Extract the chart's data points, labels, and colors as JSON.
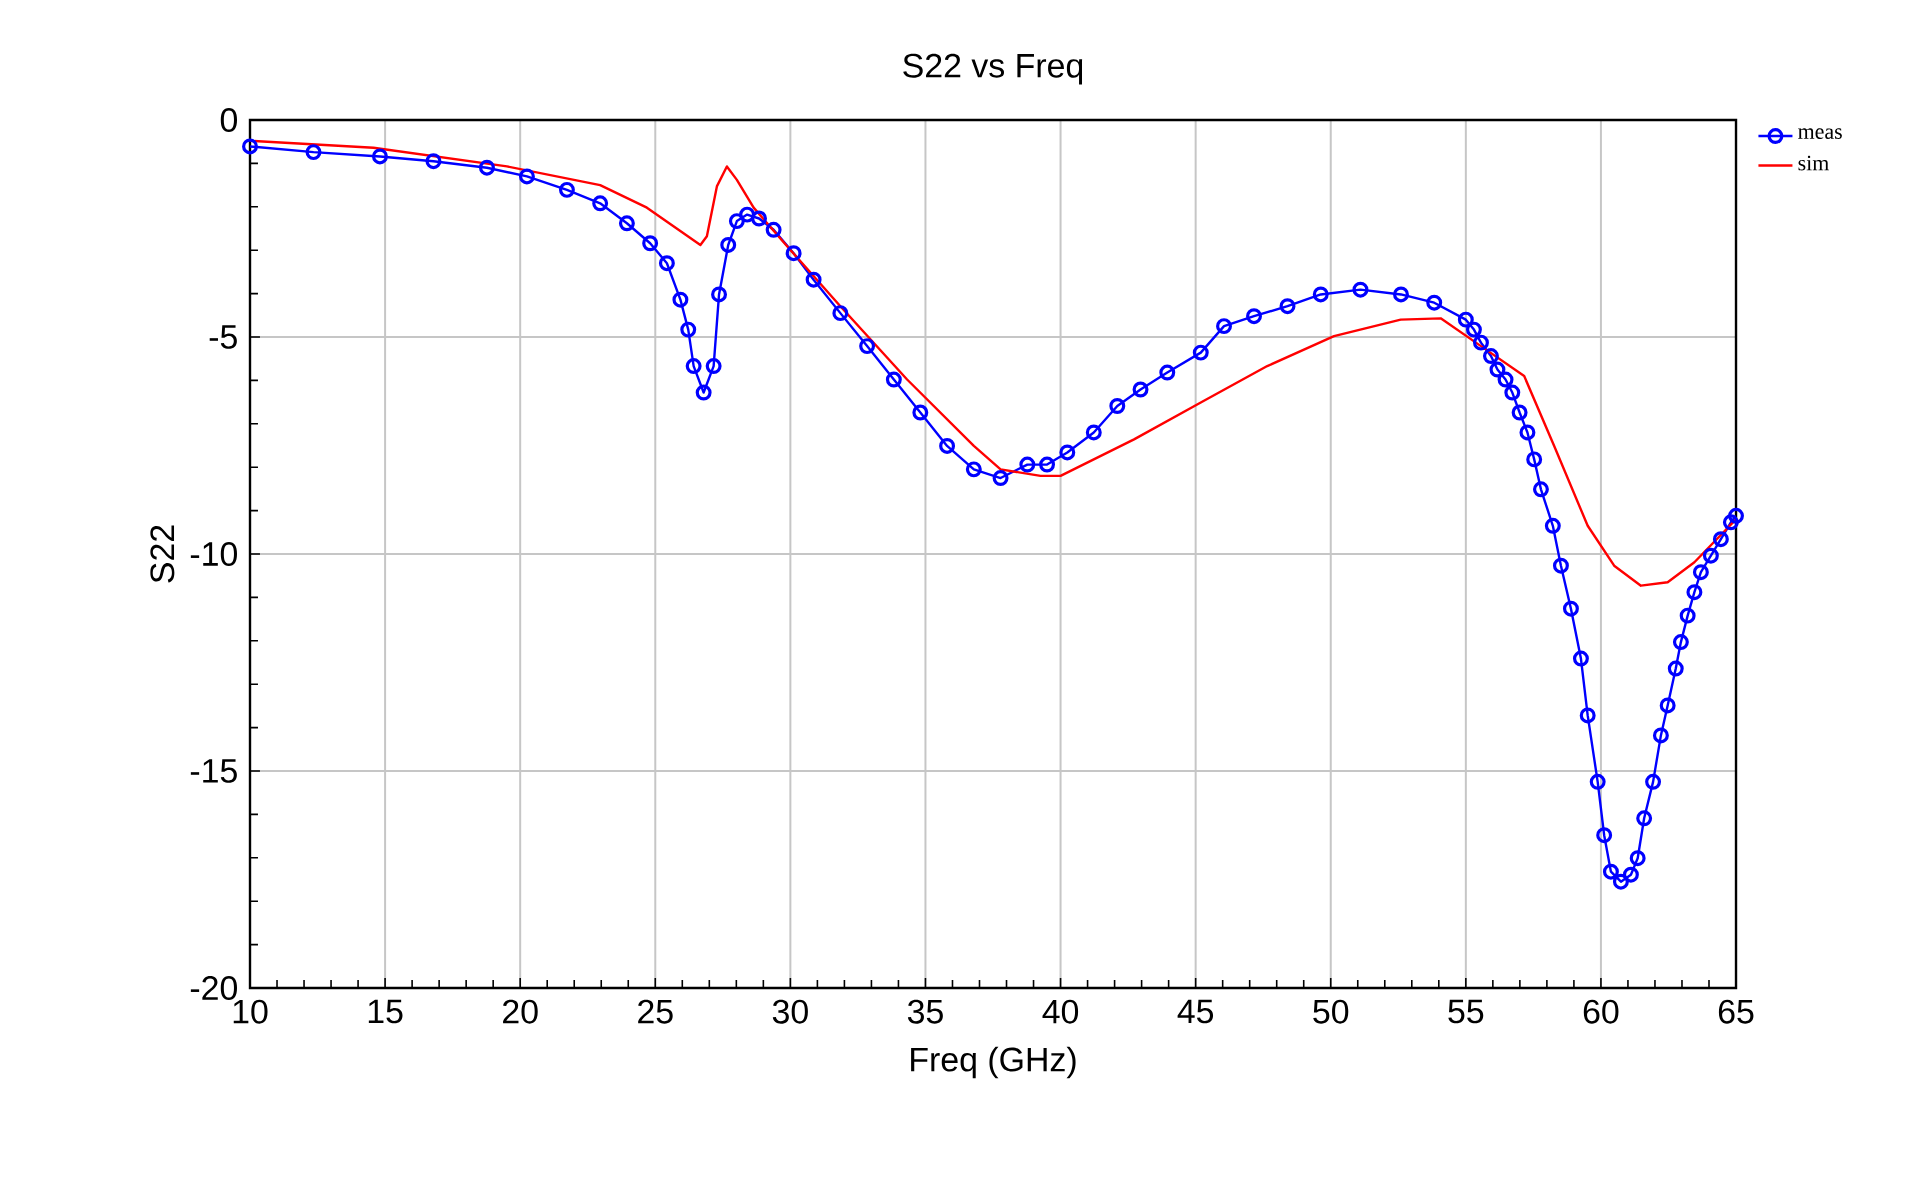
{
  "chart_data": {
    "type": "line",
    "title": "S22 vs Freq",
    "xlabel": "Freq (GHz)",
    "ylabel": "S22",
    "xlim": [
      10,
      65
    ],
    "ylim": [
      -20,
      0
    ],
    "xticks": [
      10,
      15,
      20,
      25,
      30,
      35,
      40,
      45,
      50,
      55,
      60,
      65
    ],
    "yticks": [
      -20,
      -15,
      -10,
      -5,
      0
    ],
    "grid": true,
    "legend": "top right",
    "series": [
      {
        "name": "meas",
        "color": "#0000ff",
        "marker": "circle",
        "x": [
          10,
          12.35,
          14.81,
          16.79,
          18.77,
          20.25,
          21.73,
          22.96,
          23.95,
          24.81,
          25.43,
          25.93,
          26.22,
          26.42,
          26.79,
          27.16,
          27.36,
          27.7,
          28.02,
          28.4,
          28.84,
          29.38,
          30.12,
          30.86,
          31.85,
          32.84,
          33.83,
          34.81,
          35.8,
          36.79,
          37.78,
          38.77,
          39.5,
          40.25,
          41.23,
          42.1,
          42.96,
          43.95,
          45.19,
          46.05,
          47.16,
          48.4,
          49.63,
          51.1,
          52.6,
          53.83,
          55.0,
          55.3,
          55.56,
          55.93,
          56.17,
          56.47,
          56.72,
          56.99,
          57.28,
          57.53,
          57.78,
          58.22,
          58.52,
          58.89,
          59.26,
          59.51,
          59.88,
          60.12,
          60.37,
          60.74,
          61.11,
          61.36,
          61.6,
          61.93,
          62.22,
          62.47,
          62.77,
          62.96,
          63.21,
          63.46,
          63.7,
          64.07,
          64.44,
          64.81,
          65
        ],
        "values": [
          -0.61,
          -0.74,
          -0.84,
          -0.95,
          -1.1,
          -1.3,
          -1.61,
          -1.92,
          -2.38,
          -2.84,
          -3.3,
          -4.14,
          -4.83,
          -5.67,
          -6.28,
          -5.67,
          -4.02,
          -2.88,
          -2.33,
          -2.18,
          -2.27,
          -2.53,
          -3.07,
          -3.68,
          -4.45,
          -5.21,
          -5.98,
          -6.74,
          -7.51,
          -8.05,
          -8.25,
          -7.94,
          -7.94,
          -7.66,
          -7.2,
          -6.59,
          -6.21,
          -5.82,
          -5.36,
          -4.75,
          -4.52,
          -4.29,
          -4.02,
          -3.91,
          -4.02,
          -4.21,
          -4.6,
          -4.83,
          -5.13,
          -5.44,
          -5.75,
          -5.98,
          -6.28,
          -6.74,
          -7.2,
          -7.82,
          -8.51,
          -9.35,
          -10.27,
          -11.26,
          -12.41,
          -13.72,
          -15.25,
          -16.48,
          -17.32,
          -17.55,
          -17.39,
          -17.01,
          -16.09,
          -15.25,
          -14.18,
          -13.49,
          -12.64,
          -12.03,
          -11.42,
          -10.88,
          -10.42,
          -10.04,
          -9.66,
          -9.27,
          -9.12
        ]
      },
      {
        "name": "sim",
        "color": "#ff0000",
        "marker": "none",
        "x": [
          10,
          14.57,
          19.51,
          22.96,
          24.69,
          26.67,
          26.91,
          27.28,
          27.65,
          28.02,
          28.64,
          29.88,
          31.85,
          34.32,
          36.79,
          37.78,
          39.26,
          40,
          42.72,
          45.19,
          47.65,
          50.12,
          52.59,
          54.07,
          55.56,
          57.16,
          58.27,
          59.51,
          60.49,
          61.48,
          62.47,
          63.46,
          65
        ],
        "values": [
          -0.48,
          -0.64,
          -1.07,
          -1.5,
          -2.02,
          -2.88,
          -2.68,
          -1.53,
          -1.07,
          -1.38,
          -2.02,
          -2.91,
          -4.29,
          -5.98,
          -7.51,
          -8.05,
          -8.2,
          -8.2,
          -7.36,
          -6.51,
          -5.67,
          -4.98,
          -4.6,
          -4.57,
          -5.21,
          -5.9,
          -7.51,
          -9.35,
          -10.27,
          -10.73,
          -10.65,
          -10.19,
          -9.2
        ]
      }
    ]
  }
}
